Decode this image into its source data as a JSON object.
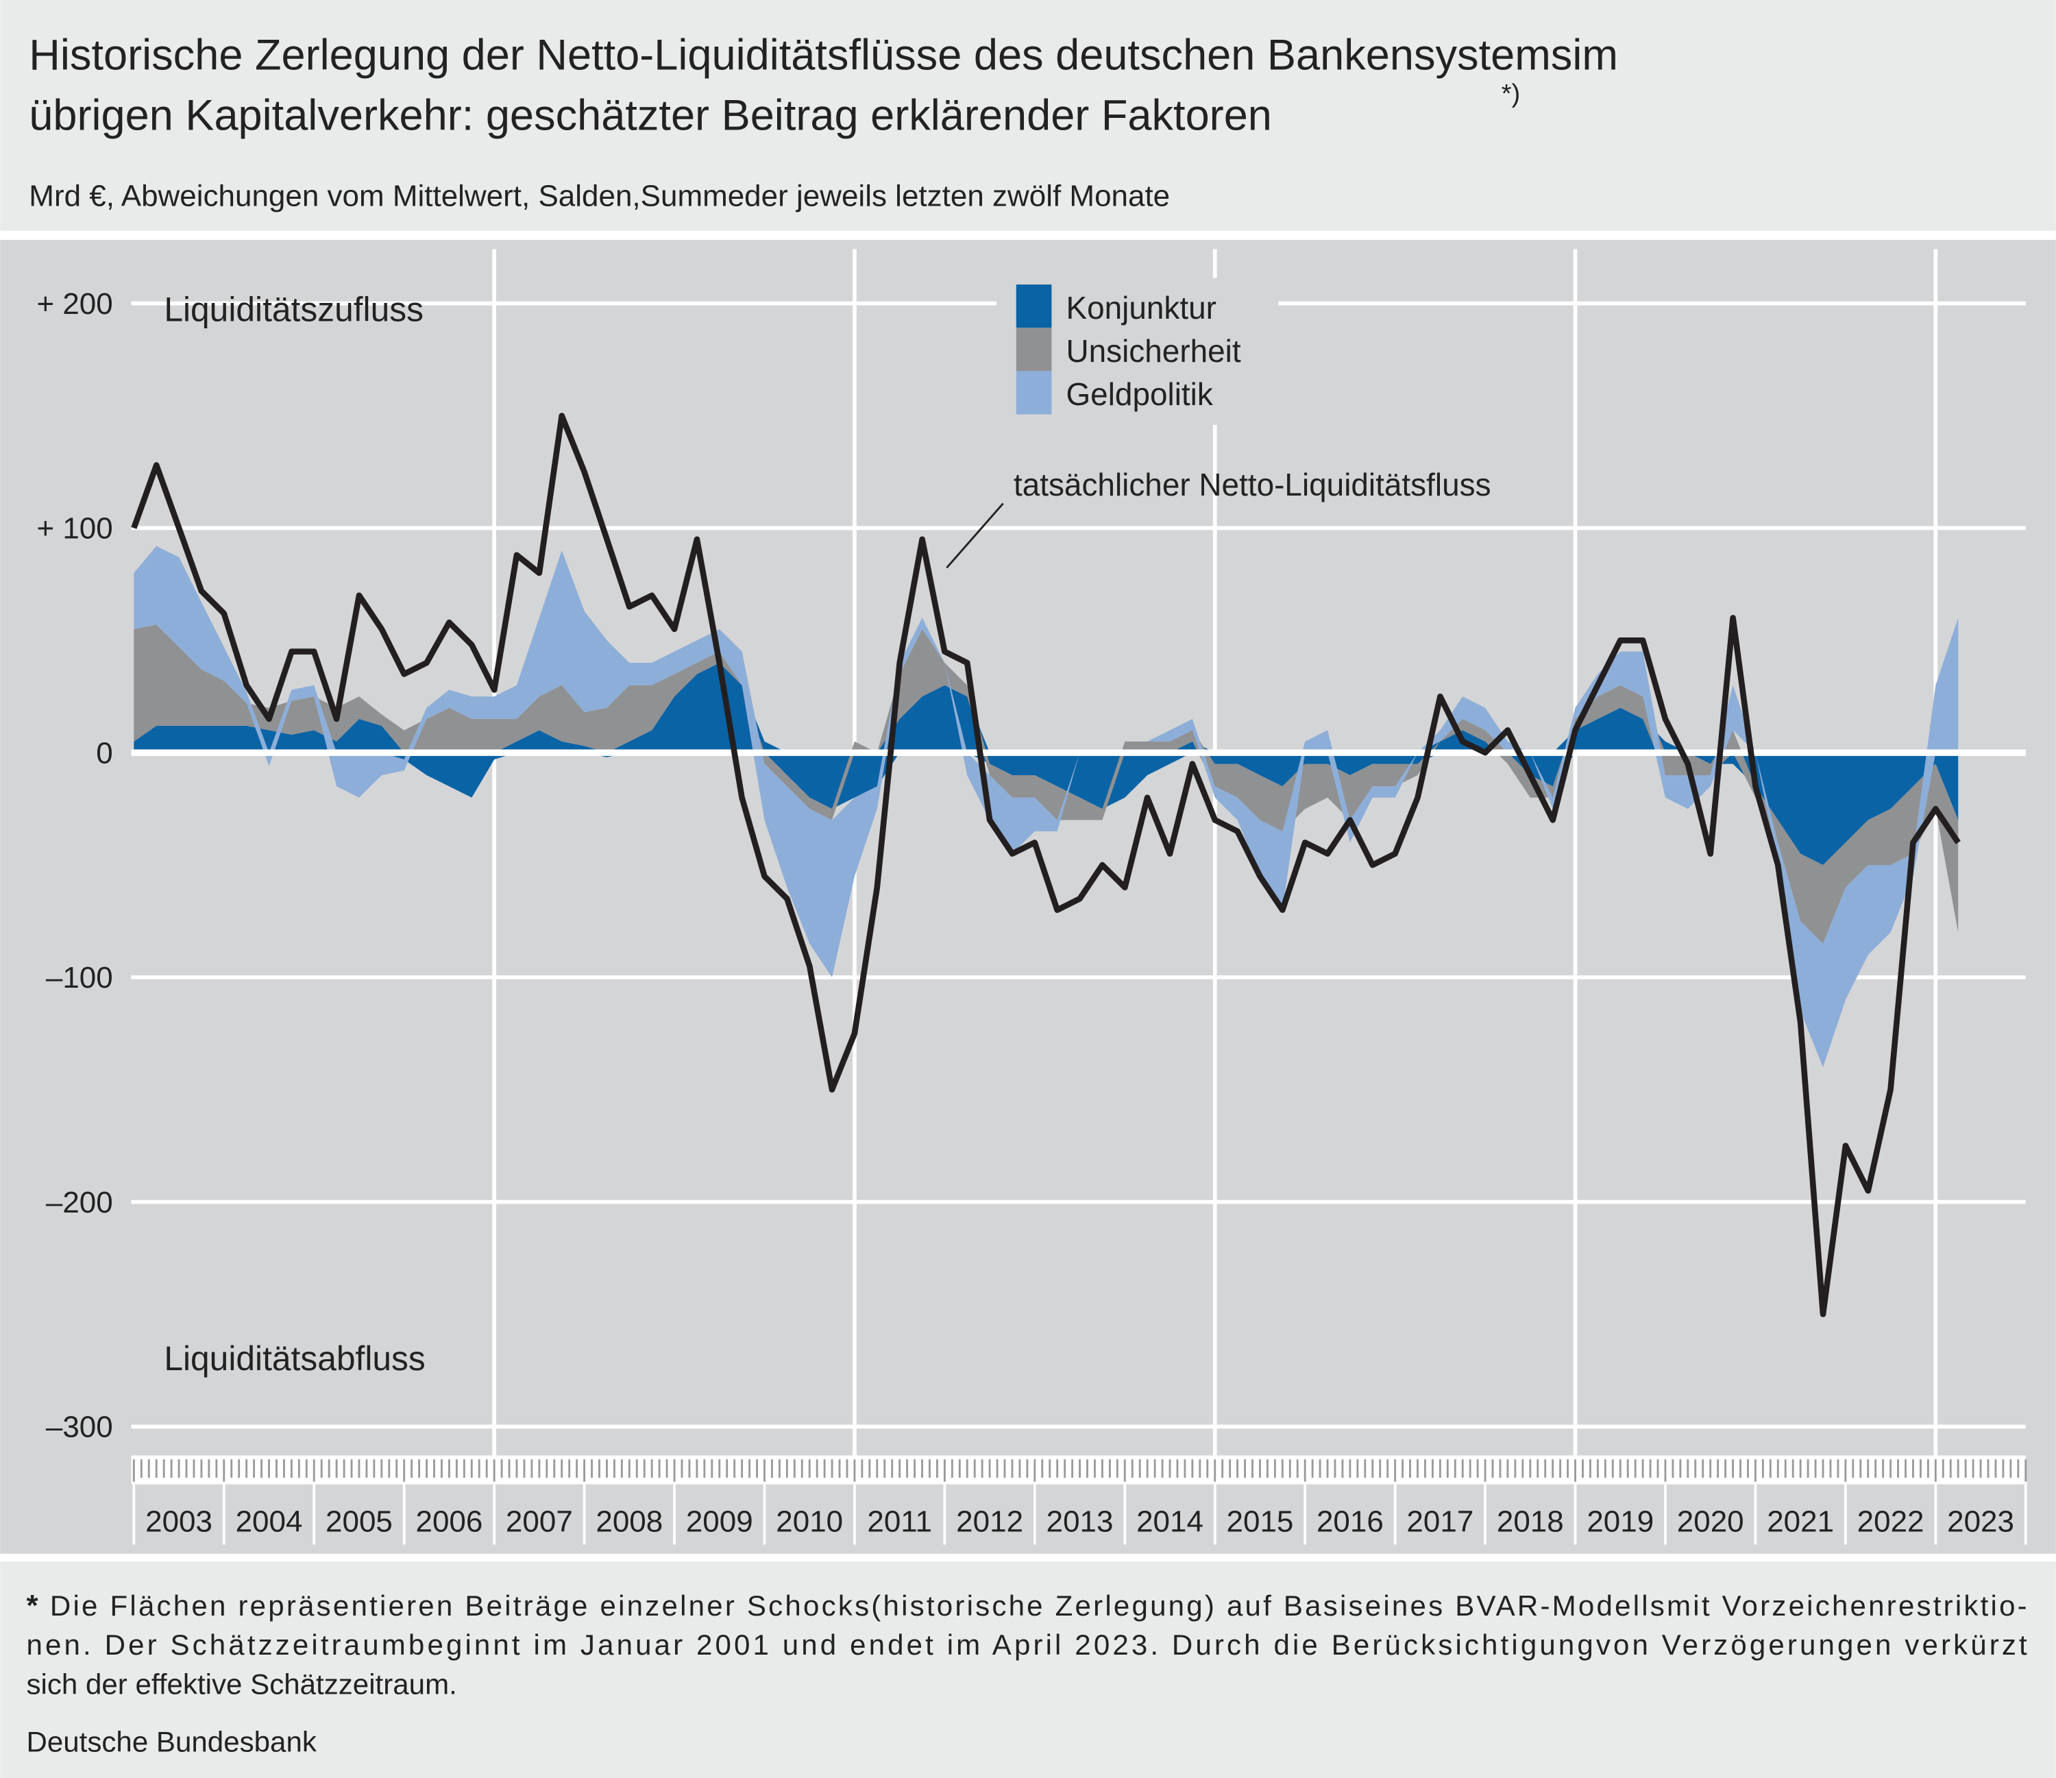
{
  "chart_data": {
    "type": "stacked_area",
    "title_lines": [
      "Historische Zerlegung der Netto-Liquiditätsflüsse  des deutschen Bankensystemsim",
      "übrigen Kapitalverkehr: geschätzter Beitrag erklärender Faktoren"
    ],
    "title_note": "*)",
    "subtitle": "Mrd €, Abweichungen vom Mittelwert,  Salden,Summeder jeweils letzten zwölf Monate",
    "annotations": {
      "top": "Liquiditätszufluss",
      "bottom": "Liquiditätsabfluss"
    },
    "footnote_marker": "*",
    "footnote_lines": [
      "Die Flächen repräsentieren Beiträge einzelner Schocks(historische Zerlegung) auf Basiseines BVAR-Modellsmit Vorzeichenrestriktio-",
      "nen. Der Schätzzeitraumbeginnt im Januar 2001 und endet im April 2023. Durch die Berücksichtigungvon Verzögerungen verkürzt",
      "sich der effektive  Schätzzeitraum."
    ],
    "source": "Deutsche Bundesbank",
    "categories": [
      "2003",
      "2004",
      "2005",
      "2006",
      "2007",
      "2008",
      "2009",
      "2010",
      "2011",
      "2012",
      "2013",
      "2014",
      "2015",
      "2016",
      "2017",
      "2018",
      "2019",
      "2020",
      "2021",
      "2022",
      "2023"
    ],
    "xlim": [
      2003,
      2024
    ],
    "x_gridlines": [
      2007,
      2011,
      2015,
      2019,
      2023
    ],
    "ylim": [
      -300,
      230
    ],
    "yticks": [
      {
        "value": 200,
        "label": "+ 200"
      },
      {
        "value": 100,
        "label": "+ 100"
      },
      0,
      {
        "value": -100,
        "label": "–100"
      },
      {
        "value": -200,
        "label": "–200"
      },
      {
        "value": -300,
        "label": "–300"
      }
    ],
    "grid": true,
    "x": [
      2003,
      2003.25,
      2003.5,
      2003.75,
      2004,
      2004.25,
      2004.5,
      2004.75,
      2005,
      2005.25,
      2005.5,
      2005.75,
      2006,
      2006.25,
      2006.5,
      2006.75,
      2007,
      2007.25,
      2007.5,
      2007.75,
      2008,
      2008.25,
      2008.5,
      2008.75,
      2009,
      2009.25,
      2009.5,
      2009.75,
      2010,
      2010.25,
      2010.5,
      2010.75,
      2011,
      2011.25,
      2011.5,
      2011.75,
      2012,
      2012.25,
      2012.5,
      2012.75,
      2013,
      2013.25,
      2013.5,
      2013.75,
      2014,
      2014.25,
      2014.5,
      2014.75,
      2015,
      2015.25,
      2015.5,
      2015.75,
      2016,
      2016.25,
      2016.5,
      2016.75,
      2017,
      2017.25,
      2017.5,
      2017.75,
      2018,
      2018.25,
      2018.5,
      2018.75,
      2019,
      2019.25,
      2019.5,
      2019.75,
      2020,
      2020.25,
      2020.5,
      2020.75,
      2021,
      2021.25,
      2021.5,
      2021.75,
      2022,
      2022.25,
      2022.5,
      2022.75,
      2023,
      2023.25
    ],
    "series": [
      {
        "name": "Konjunktur",
        "color": "#0a63a5",
        "values": [
          5,
          12,
          12,
          12,
          12,
          12,
          10,
          8,
          10,
          5,
          15,
          12,
          -3,
          -10,
          -15,
          -20,
          -3,
          5,
          10,
          5,
          3,
          -2,
          5,
          10,
          25,
          35,
          40,
          30,
          5,
          -10,
          -20,
          -25,
          -20,
          -15,
          15,
          25,
          30,
          25,
          -5,
          -10,
          -10,
          -15,
          -20,
          -25,
          -20,
          -10,
          -5,
          5,
          -5,
          -5,
          -10,
          -15,
          -5,
          -5,
          -10,
          -5,
          -5,
          -5,
          5,
          10,
          5,
          0,
          -10,
          -15,
          10,
          15,
          20,
          15,
          5,
          0,
          -5,
          -5,
          -15,
          -30,
          -45,
          -50,
          -40,
          -30,
          -25,
          -15,
          -5,
          -30
        ]
      },
      {
        "name": "Unsicherheit",
        "color": "#909193",
        "values": [
          50,
          45,
          35,
          25,
          20,
          10,
          10,
          15,
          15,
          15,
          10,
          5,
          10,
          15,
          20,
          15,
          15,
          10,
          15,
          25,
          15,
          20,
          25,
          20,
          10,
          5,
          5,
          0,
          -5,
          -5,
          -5,
          -5,
          5,
          0,
          20,
          30,
          10,
          5,
          -5,
          -10,
          -10,
          -15,
          -10,
          -5,
          5,
          5,
          5,
          5,
          -10,
          -15,
          -20,
          -20,
          -20,
          -15,
          -20,
          -10,
          -10,
          -5,
          0,
          5,
          5,
          -5,
          -10,
          -5,
          5,
          10,
          10,
          10,
          -10,
          -10,
          -5,
          10,
          -5,
          -10,
          -30,
          -35,
          -20,
          -20,
          -25,
          -30,
          -20,
          -50
        ]
      },
      {
        "name": "Geldpolitik",
        "color": "#8daed8",
        "values": [
          25,
          35,
          40,
          30,
          15,
          5,
          -6,
          5,
          5,
          -15,
          -20,
          -10,
          -5,
          5,
          8,
          10,
          10,
          15,
          35,
          60,
          45,
          30,
          10,
          10,
          10,
          10,
          10,
          15,
          -25,
          -45,
          -60,
          -70,
          -35,
          -10,
          5,
          5,
          0,
          -10,
          -20,
          -25,
          -15,
          -5,
          0,
          0,
          0,
          0,
          5,
          5,
          -5,
          -10,
          -25,
          -35,
          5,
          10,
          -10,
          -5,
          -5,
          0,
          5,
          10,
          10,
          5,
          0,
          -5,
          5,
          10,
          15,
          20,
          -10,
          -15,
          -5,
          20,
          0,
          -10,
          -40,
          -55,
          -50,
          -40,
          -30,
          -10,
          30,
          60
        ]
      }
    ],
    "line": {
      "name": "tatsächlicher Netto-Liquiditätsfluss",
      "color": "#231f20",
      "values": [
        100,
        128,
        100,
        72,
        62,
        30,
        15,
        45,
        45,
        15,
        70,
        55,
        35,
        40,
        58,
        48,
        28,
        88,
        80,
        150,
        125,
        95,
        65,
        70,
        55,
        95,
        40,
        -20,
        -55,
        -65,
        -95,
        -150,
        -125,
        -60,
        40,
        95,
        45,
        40,
        -30,
        -45,
        -40,
        -70,
        -65,
        -50,
        -60,
        -20,
        -45,
        -5,
        -30,
        -35,
        -55,
        -70,
        -40,
        -45,
        -30,
        -50,
        -45,
        -20,
        25,
        5,
        0,
        10,
        -10,
        -30,
        10,
        30,
        50,
        50,
        15,
        -5,
        -45,
        60,
        -15,
        -50,
        -120,
        -250,
        -175,
        -195,
        -150,
        -40,
        -25,
        -40
      ]
    }
  }
}
